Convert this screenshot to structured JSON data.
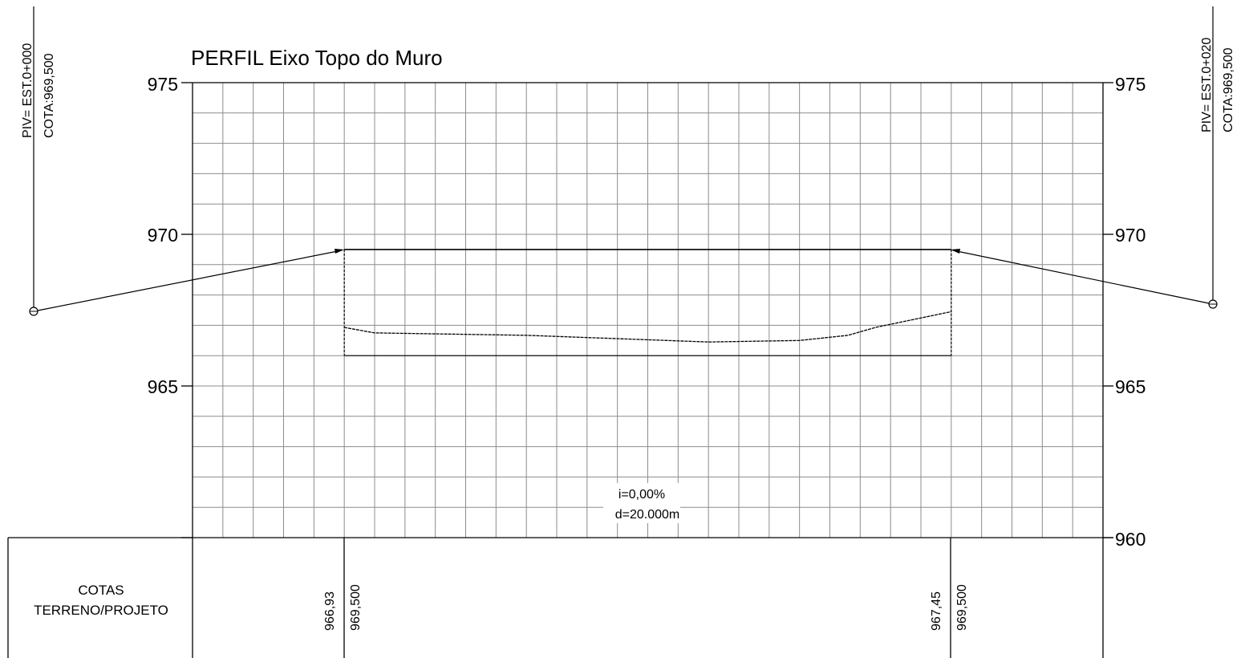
{
  "title": "PERFIL Eixo Topo do Muro",
  "piv_left": {
    "label": "PIV= EST.0+000",
    "cota": "COTA:969,500"
  },
  "piv_right": {
    "label": "PIV= EST.0+020",
    "cota": "COTA:969,500"
  },
  "axis": {
    "elevation_ticks": [
      "975",
      "970",
      "965",
      "960"
    ],
    "elevation_min": 960,
    "elevation_max": 975,
    "station_min": -5,
    "station_max": 25,
    "grid_step_station": 1,
    "grid_step_elevation": 1
  },
  "grade": {
    "slope_label": "i=0,00%",
    "distance_label": "d=20.000m"
  },
  "profile": {
    "project_elevation": 969.5,
    "box_start_station": 0,
    "box_end_station": 20,
    "box_bottom_elevation": 966.0,
    "terrain_points": [
      [
        0,
        966.93
      ],
      [
        1,
        966.75
      ],
      [
        6,
        966.67
      ],
      [
        12,
        966.45
      ],
      [
        15,
        966.5
      ],
      [
        16.6,
        966.67
      ],
      [
        17.5,
        966.93
      ],
      [
        20,
        967.45
      ]
    ]
  },
  "table": {
    "row_label_line1": "COTAS",
    "row_label_line2": "TERRENO/PROJETO",
    "stations": [
      {
        "terrain": "966,93",
        "project": "969,500"
      },
      {
        "terrain": "967,45",
        "project": "969,500"
      }
    ]
  }
}
